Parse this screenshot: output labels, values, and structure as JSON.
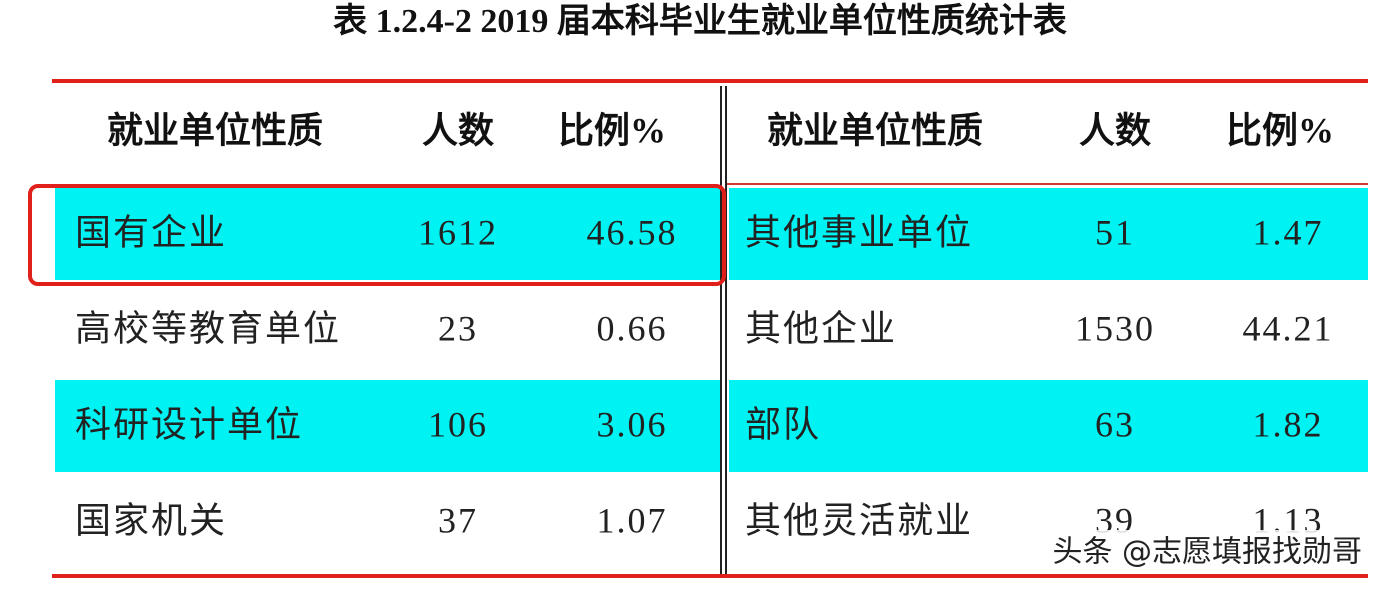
{
  "title": "表 1.2.4-2  2019 届本科毕业生就业单位性质统计表",
  "table": {
    "header": [
      "就业单位性质",
      "人数",
      "比例%",
      "就业单位性质",
      "人数",
      "比例%"
    ],
    "rows": [
      [
        "国有企业",
        1612,
        46.58,
        "其他事业单位",
        51,
        1.47
      ],
      [
        "高校等教育单位",
        23,
        0.66,
        "其他企业",
        1530,
        44.21
      ],
      [
        "科研设计单位",
        106,
        3.06,
        "部队",
        63,
        1.82
      ],
      [
        "国家机关",
        37,
        1.07,
        "其他灵活就业",
        39,
        1.13
      ]
    ]
  },
  "watermark": "头条 @志愿填报找勋哥"
}
